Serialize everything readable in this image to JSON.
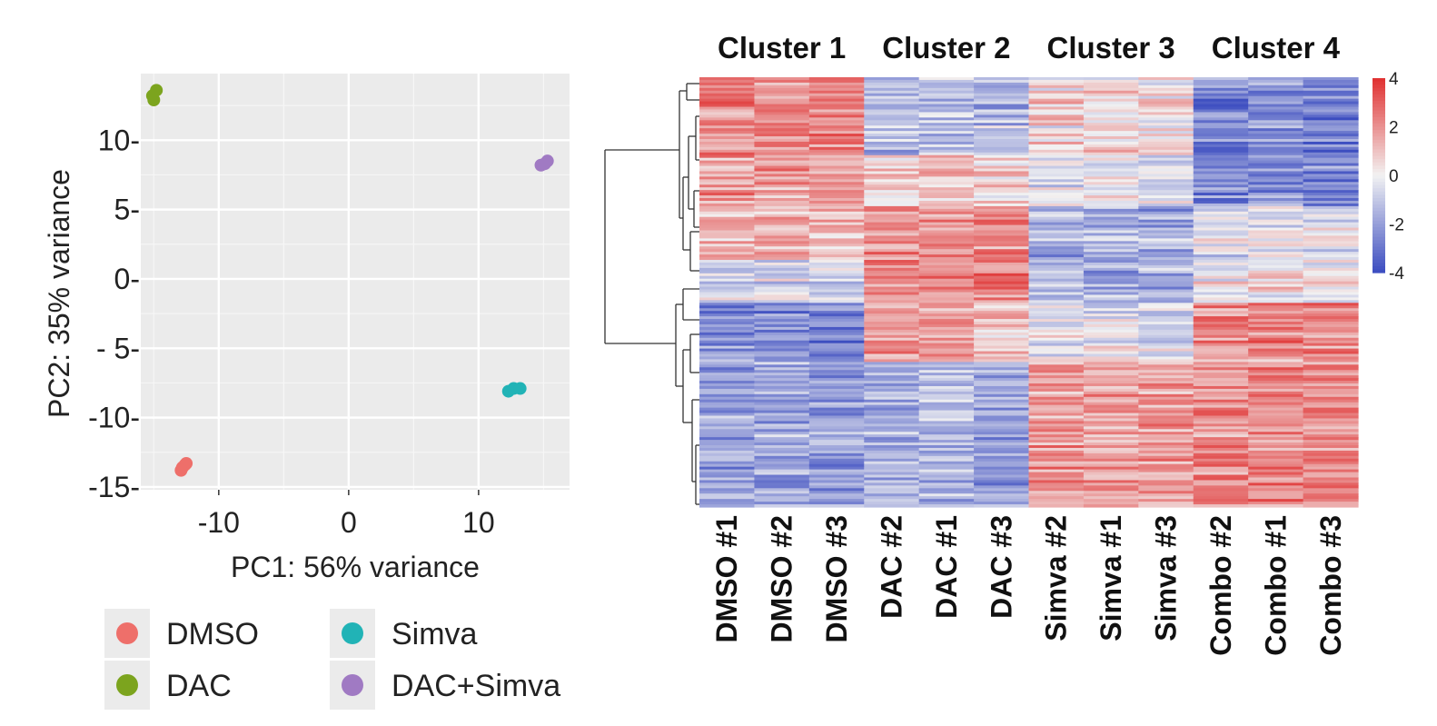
{
  "chart_data": [
    {
      "type": "scatter",
      "xlabel": "PC1: 56% variance",
      "ylabel": "PC2: 35% variance",
      "xlim": [
        -16,
        17
      ],
      "ylim": [
        -15.2,
        14.8
      ],
      "xticks": [
        -10,
        0,
        10
      ],
      "xtick_labels": [
        "-10",
        "0",
        "10"
      ],
      "yticks": [
        10,
        5,
        0,
        -5,
        -10,
        -15
      ],
      "ytick_labels": [
        "10-",
        "5-",
        "0-",
        "- 5-",
        "-10-",
        "-15-"
      ],
      "grid": true,
      "legend_position": "bottom",
      "series": [
        {
          "name": "DMSO",
          "color": "#ee6f6a",
          "points": [
            [
              -12.8,
              -13.6
            ],
            [
              -12.6,
              -13.4
            ],
            [
              -12.5,
              -13.3
            ],
            [
              -12.9,
              -13.8
            ]
          ]
        },
        {
          "name": "DAC",
          "color": "#7ca41e",
          "points": [
            [
              -15.0,
              12.9
            ],
            [
              -14.8,
              13.6
            ],
            [
              -15.1,
              13.2
            ]
          ]
        },
        {
          "name": "Simva",
          "color": "#21b3b6",
          "points": [
            [
              12.3,
              -8.1
            ],
            [
              12.7,
              -7.9
            ],
            [
              13.2,
              -7.9
            ]
          ]
        },
        {
          "name": "DAC+Simva",
          "color": "#a07ac3",
          "points": [
            [
              14.8,
              8.2
            ],
            [
              15.1,
              8.3
            ],
            [
              15.3,
              8.5
            ]
          ]
        }
      ]
    },
    {
      "type": "heatmap",
      "clusters": [
        "Cluster 1",
        "Cluster 2",
        "Cluster 3",
        "Cluster 4"
      ],
      "columns": [
        "DMSO #1",
        "DMSO #2",
        "DMSO #3",
        "DAC #2",
        "DAC #1",
        "DAC #3",
        "Simva #2",
        "Simva #1",
        "Simva #3",
        "Combo #2",
        "Combo #1",
        "Combo #3"
      ],
      "color_scale": {
        "min": -4,
        "max": 4,
        "low_color": "#3b4cc0",
        "mid_color": "#f2f2f2",
        "high_color": "#e03030"
      },
      "colorbar_ticks": [
        "4",
        "2",
        "0",
        "-2",
        "-4"
      ],
      "row_blocks": [
        {
          "fraction": 0.18,
          "values": [
            2.1,
            2.0,
            2.2,
            -1.2,
            -1.0,
            -1.3,
            0.5,
            0.4,
            0.3,
            -2.5,
            -2.3,
            -2.4
          ]
        },
        {
          "fraction": 0.12,
          "values": [
            1.8,
            1.9,
            1.7,
            0.8,
            0.9,
            0.7,
            -0.6,
            -0.4,
            -0.5,
            -2.6,
            -2.4,
            -2.5
          ]
        },
        {
          "fraction": 0.12,
          "values": [
            1.5,
            1.6,
            1.4,
            2.0,
            2.2,
            2.1,
            -1.8,
            -1.5,
            -1.6,
            -0.5,
            -0.3,
            -0.4
          ]
        },
        {
          "fraction": 0.1,
          "values": [
            -0.8,
            -0.6,
            -0.9,
            2.3,
            2.5,
            2.4,
            -1.5,
            -1.7,
            -1.6,
            0.2,
            0.4,
            0.3
          ]
        },
        {
          "fraction": 0.14,
          "values": [
            -2.4,
            -2.3,
            -2.5,
            1.6,
            1.8,
            0.9,
            -0.3,
            -0.2,
            -0.4,
            2.0,
            2.1,
            2.2
          ]
        },
        {
          "fraction": 0.34,
          "values": [
            -2.0,
            -1.8,
            -2.1,
            -1.6,
            -1.4,
            -1.9,
            1.9,
            1.7,
            1.8,
            2.2,
            2.3,
            2.1
          ]
        }
      ]
    }
  ]
}
